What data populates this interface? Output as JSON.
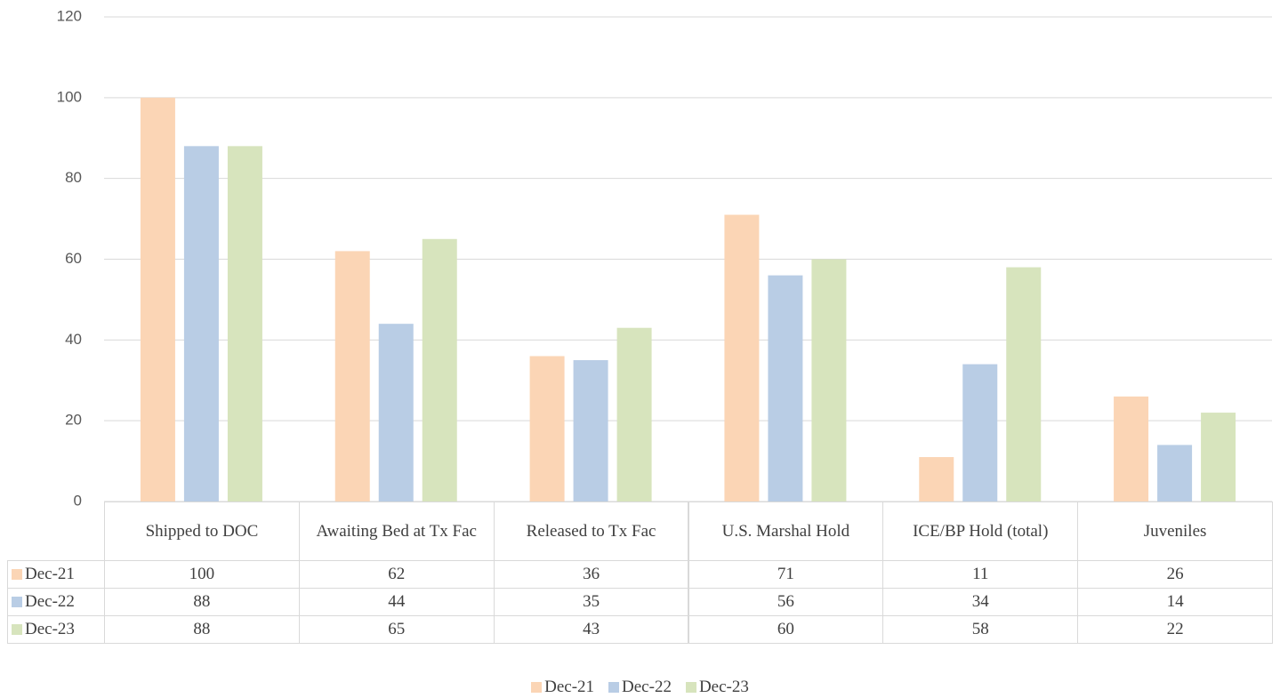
{
  "chart_data": {
    "type": "bar",
    "categories": [
      "Shipped to DOC",
      "Awaiting Bed at Tx Fac",
      "Released to Tx Fac",
      "U.S. Marshal Hold",
      "ICE/BP Hold (total)",
      "Juveniles"
    ],
    "series": [
      {
        "name": "Dec-21",
        "color": "#fbd5b5",
        "values": [
          100,
          62,
          36,
          71,
          11,
          26
        ]
      },
      {
        "name": "Dec-22",
        "color": "#b9cde5",
        "values": [
          88,
          44,
          35,
          56,
          34,
          14
        ]
      },
      {
        "name": "Dec-23",
        "color": "#d7e4bd",
        "values": [
          88,
          65,
          43,
          60,
          58,
          22
        ]
      }
    ],
    "ylim": [
      0,
      120
    ],
    "yticks": [
      0,
      20,
      40,
      60,
      80,
      100,
      120
    ],
    "grid": true,
    "legend": "bottom"
  }
}
